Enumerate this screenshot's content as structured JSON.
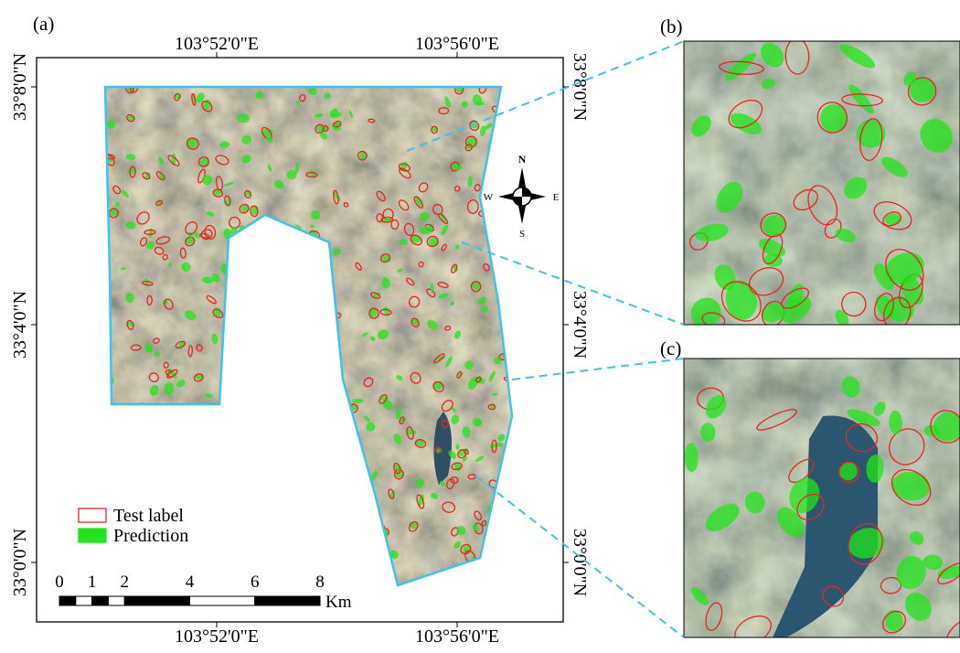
{
  "panels": {
    "a": "(a)",
    "b": "(b)",
    "c": "(c)"
  },
  "axes": {
    "top": [
      "103°52'0\"E",
      "103°56'0\"E"
    ],
    "bottom": [
      "103°52'0\"E",
      "103°56'0\"E"
    ],
    "left": [
      "33°8'0\"N",
      "33°4'0\"N",
      "33°0'0\"N"
    ],
    "right": [
      "33°8'0\"N",
      "33°4'0\"N",
      "33°0'0\"N"
    ]
  },
  "legend": [
    {
      "label": "Test label",
      "color": "#e8261c"
    },
    {
      "label": "Prediction",
      "color": "#22e41a"
    }
  ],
  "scale_bar": {
    "ticks": [
      0,
      1,
      2,
      4,
      6,
      8
    ],
    "unit": "Km"
  },
  "compass": {
    "n": "N",
    "s": "S",
    "e": "E",
    "w": "W"
  }
}
